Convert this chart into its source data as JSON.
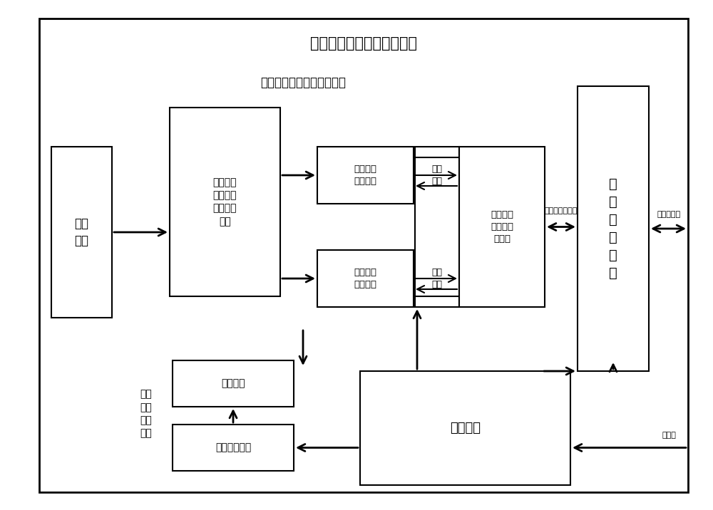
{
  "title": "临近空间暗弱目标定向装置",
  "sensor_group_label": "彩色红外共孔径成像敏感器",
  "servo_group_label": "二维\n伺服\n指向\n机构",
  "box_observe": "观测\n目标",
  "box_optical": "彩色红外\n多光谱共\n孔径光学\n系统",
  "box_visible": "可见彩色\n成像模块",
  "box_infrared": "长波红外\n成像模块",
  "box_image_ctrl_top": "图像\n控制",
  "box_image_ctrl_bot": "图像\n控制",
  "box_highspeed": "高速图像\n与信息处\n理模块",
  "box_integrated": "综\n合\n控\n制\n单\n元",
  "box_turntable": "二维转台",
  "box_servo_drive": "伺服控制驱动",
  "box_power": "二次电源",
  "label_ctrl_comm": "控制、通信数据",
  "label_ctrl_meas": "控制、测量",
  "label_power_supply": "供配电",
  "bg_color": "#ffffff",
  "box_color": "#ffffff",
  "border_color": "#000000",
  "text_color": "#000000"
}
